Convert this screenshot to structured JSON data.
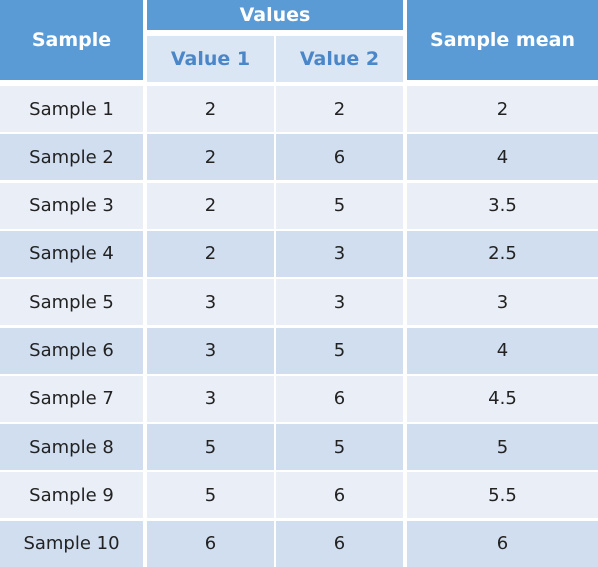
{
  "table": {
    "headers": {
      "sample": "Sample",
      "values_group": "Values",
      "value1": "Value 1",
      "value2": "Value 2",
      "mean": "Sample mean"
    },
    "rows": [
      {
        "sample": "Sample 1",
        "v1": "2",
        "v2": "2",
        "mean": "2"
      },
      {
        "sample": "Sample 2",
        "v1": "2",
        "v2": "6",
        "mean": "4"
      },
      {
        "sample": "Sample 3",
        "v1": "2",
        "v2": "5",
        "mean": "3.5"
      },
      {
        "sample": "Sample 4",
        "v1": "2",
        "v2": "3",
        "mean": "2.5"
      },
      {
        "sample": "Sample 5",
        "v1": "3",
        "v2": "3",
        "mean": "3"
      },
      {
        "sample": "Sample 6",
        "v1": "3",
        "v2": "5",
        "mean": "4"
      },
      {
        "sample": "Sample 7",
        "v1": "3",
        "v2": "6",
        "mean": "4.5"
      },
      {
        "sample": "Sample 8",
        "v1": "5",
        "v2": "5",
        "mean": "5"
      },
      {
        "sample": "Sample 9",
        "v1": "5",
        "v2": "6",
        "mean": "5.5"
      },
      {
        "sample": "Sample 10",
        "v1": "6",
        "v2": "6",
        "mean": "6"
      }
    ],
    "colors": {
      "header_bg": "#5b9bd5",
      "header_text": "#ffffff",
      "subheader_bg": "#dbe6f4",
      "subheader_text": "#4a86c8",
      "row_light": "#eaeff7",
      "row_dark": "#d1deef"
    }
  },
  "chart_data": {
    "type": "table",
    "columns": [
      "Sample",
      "Value 1",
      "Value 2",
      "Sample mean"
    ],
    "column_groups": [
      {
        "name": "Values",
        "columns": [
          "Value 1",
          "Value 2"
        ]
      }
    ],
    "rows": [
      [
        "Sample 1",
        2,
        2,
        2
      ],
      [
        "Sample 2",
        2,
        6,
        4
      ],
      [
        "Sample 3",
        2,
        5,
        3.5
      ],
      [
        "Sample 4",
        2,
        3,
        2.5
      ],
      [
        "Sample 5",
        3,
        3,
        3
      ],
      [
        "Sample 6",
        3,
        5,
        4
      ],
      [
        "Sample 7",
        3,
        6,
        4.5
      ],
      [
        "Sample 8",
        5,
        5,
        5
      ],
      [
        "Sample 9",
        5,
        6,
        5.5
      ],
      [
        "Sample 10",
        6,
        6,
        6
      ]
    ]
  }
}
